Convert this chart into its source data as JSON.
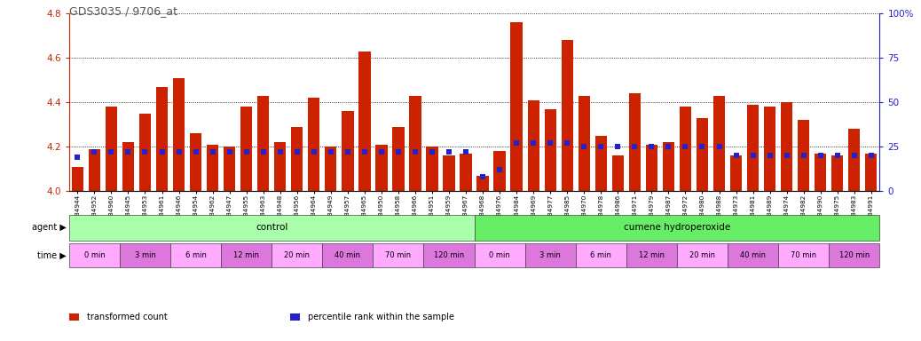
{
  "title": "GDS3035 / 9706_at",
  "ylim_left": [
    4.0,
    4.8
  ],
  "ylim_right": [
    0,
    100
  ],
  "yticks_left": [
    4.0,
    4.2,
    4.4,
    4.6,
    4.8
  ],
  "yticks_right": [
    0,
    25,
    50,
    75,
    100
  ],
  "bar_color": "#cc2200",
  "dot_color": "#2222cc",
  "background_color": "#ffffff",
  "title_color": "#555555",
  "left_axis_color": "#cc2200",
  "right_axis_color": "#2222cc",
  "categories": [
    "GSM184944",
    "GSM184952",
    "GSM184960",
    "GSM184945",
    "GSM184953",
    "GSM184961",
    "GSM184946",
    "GSM184954",
    "GSM184962",
    "GSM184947",
    "GSM184955",
    "GSM184963",
    "GSM184948",
    "GSM184956",
    "GSM184964",
    "GSM184949",
    "GSM184957",
    "GSM184965",
    "GSM184950",
    "GSM184958",
    "GSM184966",
    "GSM184951",
    "GSM184959",
    "GSM184967",
    "GSM184968",
    "GSM184976",
    "GSM184984",
    "GSM184969",
    "GSM184977",
    "GSM184985",
    "GSM184970",
    "GSM184978",
    "GSM184986",
    "GSM184971",
    "GSM184979",
    "GSM184987",
    "GSM184972",
    "GSM184980",
    "GSM184988",
    "GSM184973",
    "GSM184981",
    "GSM184989",
    "GSM184974",
    "GSM184982",
    "GSM184990",
    "GSM184975",
    "GSM184983",
    "GSM184991"
  ],
  "bar_values": [
    4.11,
    4.19,
    4.38,
    4.22,
    4.35,
    4.47,
    4.51,
    4.26,
    4.21,
    4.2,
    4.38,
    4.43,
    4.22,
    4.29,
    4.42,
    4.2,
    4.36,
    4.63,
    4.21,
    4.29,
    4.43,
    4.2,
    4.16,
    4.17,
    4.07,
    4.18,
    4.76,
    4.41,
    4.37,
    4.68,
    4.43,
    4.25,
    4.16,
    4.44,
    4.21,
    4.22,
    4.38,
    4.33,
    4.43,
    4.16,
    4.39,
    4.38,
    4.4,
    4.32,
    4.17,
    4.16,
    4.28,
    4.17
  ],
  "dot_values_pct": [
    19,
    22,
    22,
    22,
    22,
    22,
    22,
    22,
    22,
    22,
    22,
    22,
    22,
    22,
    22,
    22,
    22,
    22,
    22,
    22,
    22,
    22,
    22,
    22,
    8,
    12,
    27,
    27,
    27,
    27,
    25,
    25,
    25,
    25,
    25,
    25,
    25,
    25,
    25,
    20,
    20,
    20,
    20,
    20,
    20,
    20,
    20,
    20
  ],
  "agent_groups": [
    {
      "label": "control",
      "start": 0,
      "end": 24,
      "color": "#aaffaa"
    },
    {
      "label": "cumene hydroperoxide",
      "start": 24,
      "end": 48,
      "color": "#66ee66"
    }
  ],
  "time_groups": [
    {
      "label": "0 min",
      "start": 0,
      "end": 3,
      "color": "#ffaaff"
    },
    {
      "label": "3 min",
      "start": 3,
      "end": 6,
      "color": "#dd77dd"
    },
    {
      "label": "6 min",
      "start": 6,
      "end": 9,
      "color": "#ffaaff"
    },
    {
      "label": "12 min",
      "start": 9,
      "end": 12,
      "color": "#dd77dd"
    },
    {
      "label": "20 min",
      "start": 12,
      "end": 15,
      "color": "#ffaaff"
    },
    {
      "label": "40 min",
      "start": 15,
      "end": 18,
      "color": "#dd77dd"
    },
    {
      "label": "70 min",
      "start": 18,
      "end": 21,
      "color": "#ffaaff"
    },
    {
      "label": "120 min",
      "start": 21,
      "end": 24,
      "color": "#dd77dd"
    },
    {
      "label": "0 min",
      "start": 24,
      "end": 27,
      "color": "#ffaaff"
    },
    {
      "label": "3 min",
      "start": 27,
      "end": 30,
      "color": "#dd77dd"
    },
    {
      "label": "6 min",
      "start": 30,
      "end": 33,
      "color": "#ffaaff"
    },
    {
      "label": "12 min",
      "start": 33,
      "end": 36,
      "color": "#dd77dd"
    },
    {
      "label": "20 min",
      "start": 36,
      "end": 39,
      "color": "#ffaaff"
    },
    {
      "label": "40 min",
      "start": 39,
      "end": 42,
      "color": "#dd77dd"
    },
    {
      "label": "70 min",
      "start": 42,
      "end": 45,
      "color": "#ffaaff"
    },
    {
      "label": "120 min",
      "start": 45,
      "end": 48,
      "color": "#dd77dd"
    }
  ],
  "legend_items": [
    {
      "label": "transformed count",
      "color": "#cc2200"
    },
    {
      "label": "percentile rank within the sample",
      "color": "#2222cc"
    }
  ]
}
